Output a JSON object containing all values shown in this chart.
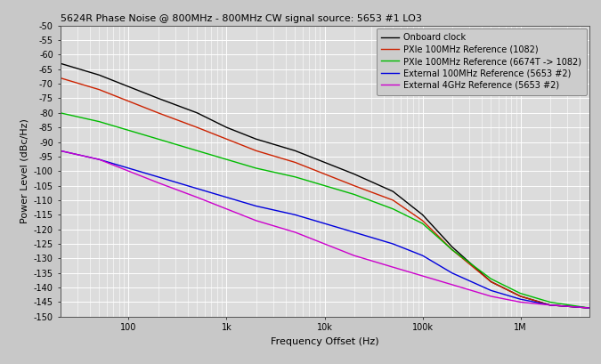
{
  "title": "5624R Phase Noise @ 800MHz - 800MHz CW signal source: 5653 #1 LO3",
  "xlabel": "Frequency Offset (Hz)",
  "ylabel": "Power Level (dBc/Hz)",
  "xlim": [
    20,
    5000000
  ],
  "ylim": [
    -150,
    -50
  ],
  "yticks": [
    -150,
    -145,
    -140,
    -135,
    -130,
    -125,
    -120,
    -115,
    -110,
    -105,
    -100,
    -95,
    -90,
    -85,
    -80,
    -75,
    -70,
    -65,
    -60,
    -55,
    -50
  ],
  "legend_entries": [
    "Onboard clock",
    "PXIe 100MHz Reference (1082)",
    "PXIe 100MHz Reference (6674T -> 1082)",
    "External 100MHz Reference (5653 #2)",
    "External 4GHz Reference (5653 #2)"
  ],
  "line_colors": [
    "#000000",
    "#cc2200",
    "#00bb00",
    "#0000dd",
    "#cc00cc"
  ],
  "bg_color": "#c8c8c8",
  "plot_bg_color": "#dcdcdc",
  "grid_color": "#ffffff",
  "x_points": [
    20,
    50,
    100,
    200,
    500,
    1000,
    2000,
    5000,
    10000,
    20000,
    50000,
    100000,
    200000,
    500000,
    1000000,
    2000000,
    5000000
  ],
  "lines": {
    "black": [
      -63,
      -67,
      -71,
      -75,
      -80,
      -85,
      -89,
      -93,
      -97,
      -101,
      -107,
      -115,
      -126,
      -138,
      -143,
      -146,
      -147
    ],
    "red": [
      -68,
      -72,
      -76,
      -80,
      -85,
      -89,
      -93,
      -97,
      -101,
      -105,
      -110,
      -117,
      -127,
      -138,
      -143,
      -146,
      -147
    ],
    "green": [
      -80,
      -83,
      -86,
      -89,
      -93,
      -96,
      -99,
      -102,
      -105,
      -108,
      -113,
      -118,
      -127,
      -137,
      -142,
      -145,
      -147
    ],
    "blue": [
      -93,
      -96,
      -99,
      -102,
      -106,
      -109,
      -112,
      -115,
      -118,
      -121,
      -125,
      -129,
      -135,
      -141,
      -144,
      -146,
      -147
    ],
    "magenta": [
      -93,
      -96,
      -100,
      -104,
      -109,
      -113,
      -117,
      -121,
      -125,
      -129,
      -133,
      -136,
      -139,
      -143,
      -145,
      -146,
      -147
    ]
  }
}
